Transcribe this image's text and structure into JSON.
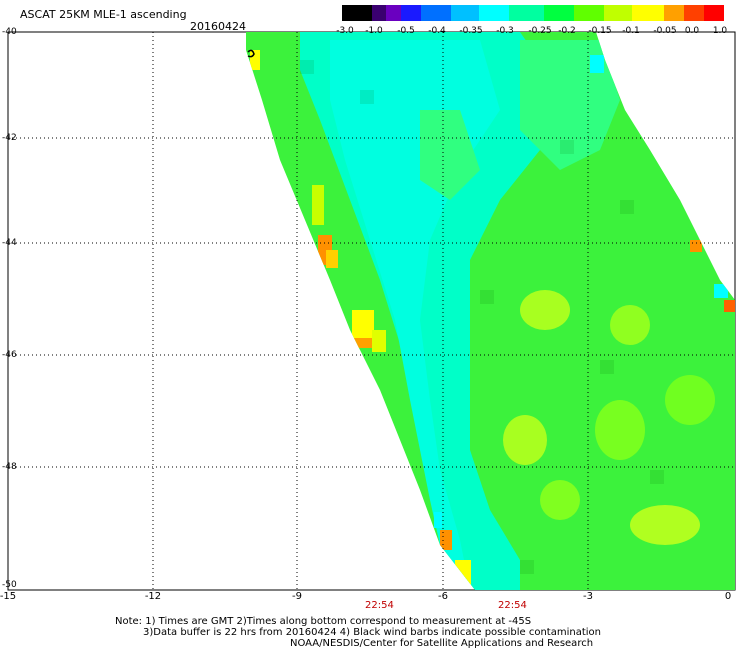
{
  "header": {
    "title": "ASCAT 25KM MLE-1 ascending",
    "date": "20160424"
  },
  "colorbar": {
    "labels": [
      "-3.0",
      "-1.0",
      "-0.5",
      "-0.4",
      "-0.35",
      "-0.3",
      "-0.25",
      "-0.2",
      "-0.15",
      "-0.1",
      "-0.05",
      "0.0",
      "1.0"
    ],
    "colors": [
      "#000000",
      "#3a0070",
      "#6a00c0",
      "#1a1aff",
      "#0070ff",
      "#00c0ff",
      "#00ffff",
      "#00ffa0",
      "#00ff40",
      "#60ff00",
      "#c0ff00",
      "#ffff00",
      "#ffa000",
      "#ff4000",
      "#ff0000"
    ]
  },
  "axes": {
    "y_labels": [
      "-40",
      "-42",
      "-44",
      "-46",
      "-48",
      "-50"
    ],
    "x_labels": [
      "-15",
      "-12",
      "-9",
      "-6",
      "-3",
      "0"
    ]
  },
  "times": [
    "22:54",
    "22:54"
  ],
  "notes": {
    "line1": "Note: 1) Times are GMT 2)Times along bottom correspond to measurement at -45S",
    "line2": "3)Data buffer is 22 hrs from 20160424 4) Black wind barbs indicate possible contamination",
    "line3": "NOAA/NESDIS/Center for Satellite Applications and Research"
  }
}
